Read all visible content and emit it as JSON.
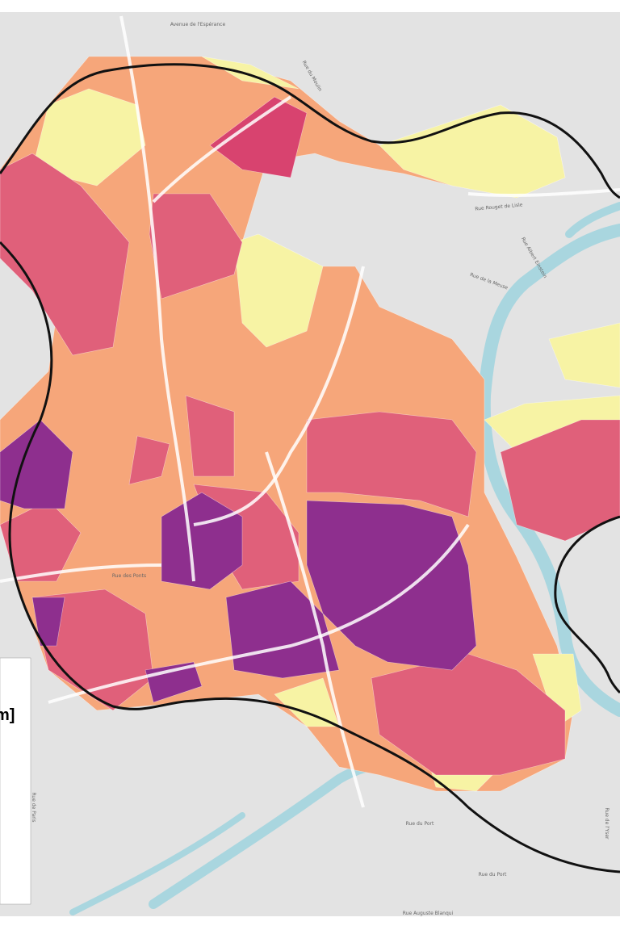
{
  "legend": {
    "title": "m]"
  },
  "streets": [
    "Avenue de l'Espérance",
    "Rue du Moulin",
    "Rue Rouget de Lisle",
    "Rue Albert Einstein",
    "Rue de la Meuse",
    "Rue des Ponts",
    "Rue du Port",
    "Rue du Port",
    "Rue Auguste Blanqui",
    "Rue de l'Yser",
    "Rue de Paris"
  ]
}
